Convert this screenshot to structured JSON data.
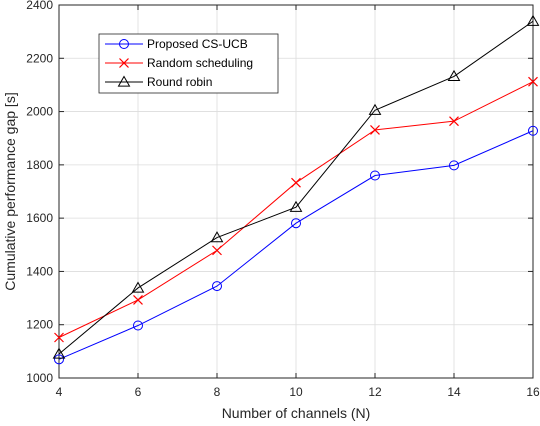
{
  "chart_data": {
    "type": "line",
    "xlabel": "Number of channels (N)",
    "ylabel": "Cumulative performance gap [s]",
    "x": [
      4,
      6,
      8,
      10,
      12,
      14,
      16
    ],
    "xlim": [
      4,
      16
    ],
    "ylim": [
      1000,
      2400
    ],
    "xticks": [
      "4",
      "6",
      "8",
      "10",
      "12",
      "14",
      "16"
    ],
    "yticks": [
      "1000",
      "1200",
      "1400",
      "1600",
      "1800",
      "2000",
      "2200",
      "2400"
    ],
    "grid": true,
    "legend_position": "top-left",
    "series": [
      {
        "name": "Proposed CS-UCB",
        "color": "#0000ff",
        "marker": "circle",
        "values": [
          1070,
          1197,
          1345,
          1581,
          1760,
          1798,
          1928
        ]
      },
      {
        "name": "Random scheduling",
        "color": "#ff0000",
        "marker": "x",
        "values": [
          1152,
          1293,
          1479,
          1733,
          1931,
          1964,
          2112
        ]
      },
      {
        "name": "Round robin",
        "color": "#000000",
        "marker": "triangle",
        "values": [
          1090,
          1338,
          1527,
          1641,
          2005,
          2132,
          2339
        ]
      }
    ]
  }
}
